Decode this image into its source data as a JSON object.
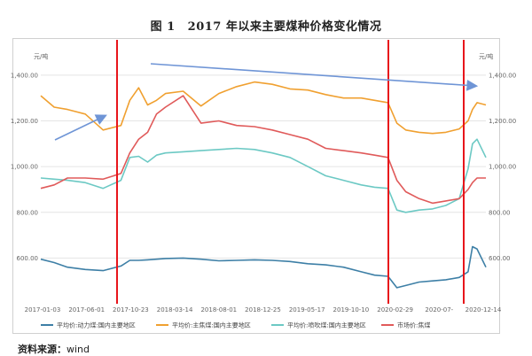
{
  "figure": {
    "number": "图 1",
    "title": "2017 年以来主要煤种价格变化情况"
  },
  "source": {
    "label": "资料来源：",
    "value": "wind"
  },
  "colors": {
    "series_blue": "#3d7fa6",
    "series_orange": "#f0a030",
    "series_teal": "#6cc9c4",
    "series_red": "#e05a5a",
    "marker_red": "#e8151b",
    "arrow_blue": "#6f95d6",
    "grid": "#e4e4e4"
  },
  "chart_data": {
    "type": "line",
    "unit_left": "元/吨",
    "unit_right": "元/吨",
    "ylim": [
      400,
      1450
    ],
    "yticks": [
      600,
      800,
      1000,
      1200,
      1400
    ],
    "ytick_labels": [
      "600.00",
      "800.00",
      "1,000.00",
      "1,200.00",
      "1,400.00"
    ],
    "xticks": [
      "2017-01-03",
      "2017-06-01",
      "2017-10-23",
      "2018-03-14",
      "2018-08-01",
      "2018-12-25",
      "2019-05-17",
      "2019-10-10",
      "2020-02-29",
      "2020-07-",
      "2020-12-14"
    ],
    "grid": true,
    "legend_position": "bottom",
    "x_time": [
      0,
      0.03,
      0.06,
      0.1,
      0.14,
      0.18,
      0.2,
      0.22,
      0.24,
      0.26,
      0.28,
      0.32,
      0.36,
      0.4,
      0.44,
      0.48,
      0.52,
      0.56,
      0.6,
      0.64,
      0.68,
      0.72,
      0.75,
      0.78,
      0.8,
      0.82,
      0.85,
      0.88,
      0.91,
      0.94,
      0.96,
      0.97,
      0.98,
      1.0
    ],
    "series": [
      {
        "name": "平均价:动力煤:国内主要地区",
        "color_key": "series_blue",
        "values": [
          595,
          580,
          560,
          550,
          545,
          565,
          590,
          590,
          592,
          595,
          598,
          600,
          595,
          588,
          590,
          592,
          590,
          585,
          575,
          570,
          560,
          540,
          525,
          520,
          470,
          480,
          495,
          500,
          505,
          515,
          540,
          650,
          640,
          560
        ]
      },
      {
        "name": "平均价:主焦煤:国内主要地区",
        "color_key": "series_orange",
        "values": [
          1310,
          1260,
          1250,
          1230,
          1160,
          1180,
          1290,
          1345,
          1270,
          1290,
          1320,
          1330,
          1265,
          1320,
          1350,
          1370,
          1360,
          1340,
          1335,
          1315,
          1300,
          1300,
          1290,
          1280,
          1190,
          1160,
          1150,
          1145,
          1150,
          1165,
          1200,
          1250,
          1280,
          1270
        ]
      },
      {
        "name": "平均价:喷吹煤:国内主要地区",
        "color_key": "series_teal",
        "values": [
          950,
          945,
          940,
          930,
          905,
          940,
          1040,
          1045,
          1020,
          1050,
          1060,
          1065,
          1070,
          1075,
          1080,
          1075,
          1060,
          1040,
          1000,
          960,
          940,
          920,
          910,
          905,
          810,
          800,
          810,
          815,
          830,
          860,
          990,
          1100,
          1120,
          1040
        ]
      },
      {
        "name": "市场价:焦煤",
        "color_key": "series_red",
        "values": [
          905,
          920,
          950,
          950,
          945,
          970,
          1060,
          1120,
          1150,
          1230,
          1260,
          1310,
          1190,
          1200,
          1180,
          1175,
          1160,
          1140,
          1120,
          1080,
          1070,
          1060,
          1050,
          1040,
          940,
          890,
          860,
          840,
          850,
          860,
          900,
          930,
          950,
          950
        ]
      }
    ]
  }
}
